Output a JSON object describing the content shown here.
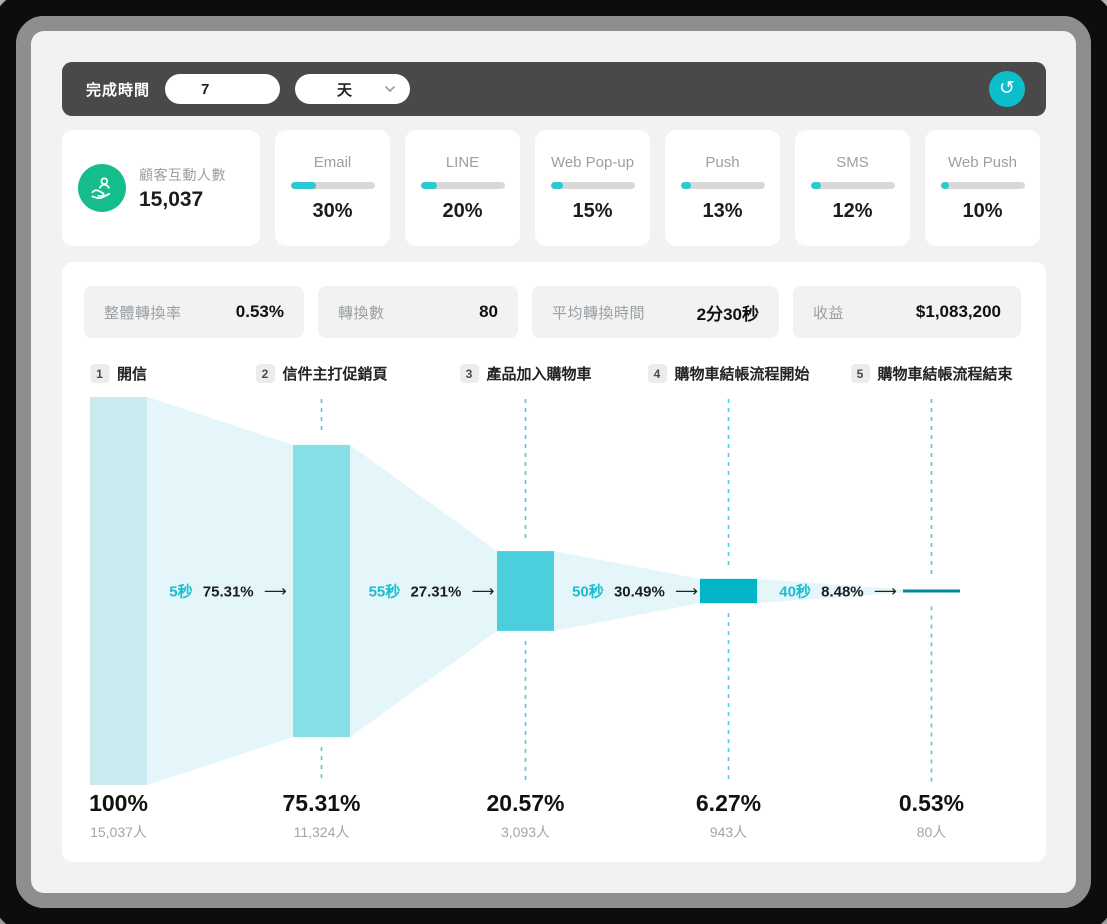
{
  "toolbar": {
    "label": "完成時間",
    "duration_value": "7",
    "unit_value": "天",
    "refresh_icon": "↺"
  },
  "interaction_card": {
    "label": "顧客互動人數",
    "value": "15,037"
  },
  "channels": [
    {
      "label": "Email",
      "percent_label": "30%",
      "percent": 30
    },
    {
      "label": "LINE",
      "percent_label": "20%",
      "percent": 20
    },
    {
      "label": "Web Pop-up",
      "percent_label": "15%",
      "percent": 15
    },
    {
      "label": "Push",
      "percent_label": "13%",
      "percent": 13
    },
    {
      "label": "SMS",
      "percent_label": "12%",
      "percent": 12
    },
    {
      "label": "Web Push",
      "percent_label": "10%",
      "percent": 10
    }
  ],
  "stats": [
    {
      "label": "整體轉換率",
      "value": "0.53%"
    },
    {
      "label": "轉換數",
      "value": "80"
    },
    {
      "label": "平均轉換時間",
      "value": "2分30秒"
    },
    {
      "label": "收益",
      "value": "$1,083,200"
    }
  ],
  "funnel": {
    "stages": [
      {
        "num": "1",
        "label": "開信",
        "percent": 100,
        "percent_label": "100%",
        "people": "15,037人"
      },
      {
        "num": "2",
        "label": "信件主打促銷頁",
        "percent": 75.31,
        "percent_label": "75.31%",
        "people": "11,324人"
      },
      {
        "num": "3",
        "label": "產品加入購物車",
        "percent": 20.57,
        "percent_label": "20.57%",
        "people": "3,093人"
      },
      {
        "num": "4",
        "label": "購物車結帳流程開始",
        "percent": 6.27,
        "percent_label": "6.27%",
        "people": "943人"
      },
      {
        "num": "5",
        "label": "購物車結帳流程結束",
        "percent": 0.53,
        "percent_label": "0.53%",
        "people": "80人"
      }
    ],
    "transitions": [
      {
        "time": "5秒",
        "rate": "75.31%",
        "arrow": "⟶"
      },
      {
        "time": "55秒",
        "rate": "27.31%",
        "arrow": "⟶"
      },
      {
        "time": "50秒",
        "rate": "30.49%",
        "arrow": "⟶"
      },
      {
        "time": "40秒",
        "rate": "8.48%",
        "arrow": "⟶"
      }
    ]
  },
  "chart_data": {
    "type": "funnel",
    "title": "",
    "stages": [
      "開信",
      "信件主打促銷頁",
      "產品加入購物車",
      "購物車結帳流程開始",
      "購物車結帳流程結束"
    ],
    "percentages": [
      100,
      75.31,
      20.57,
      6.27,
      0.53
    ],
    "people": [
      15037,
      11324,
      3093,
      943,
      80
    ],
    "transition_times": [
      "5秒",
      "55秒",
      "50秒",
      "40秒"
    ],
    "transition_rates": [
      75.31,
      27.31,
      30.49,
      8.48
    ]
  },
  "colors": {
    "accent_teal": "#0bbeca",
    "progress_fill": "#2cc8d4",
    "icon_green": "#16bd8c",
    "connector": "#e4f6f9",
    "dashed": "#4ccbd9",
    "funnel_stages": [
      "#c9ebef",
      "#87dfe8",
      "#4bcfdc",
      "#00b5c6",
      "#008595"
    ]
  }
}
